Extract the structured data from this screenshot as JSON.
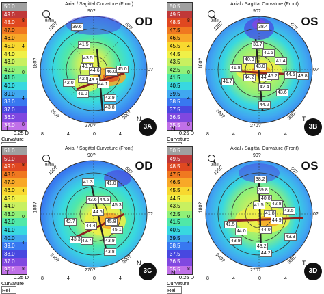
{
  "panels": [
    {
      "id": "a",
      "title": "Axial / Sagittal Curvature (Front)",
      "eye": "OD",
      "tag": "3A",
      "scale_values": [
        "50.0",
        "49.0",
        "48.0",
        "47.0",
        "46.0",
        "45.0",
        "44.0",
        "43.0",
        "42.0",
        "41.0",
        "40.0",
        "39.0",
        "38.0",
        "37.0",
        "36.0",
        "35.0"
      ],
      "step": "0.25 D",
      "map_type": "Curvature",
      "scale_mode": "Rel",
      "zoom": "9mm",
      "axis": {
        "top": "90?",
        "bottom": "270?",
        "left": "180?",
        "right": "0?",
        "x30": "30?",
        "x60": "60?",
        "x120": "120?",
        "x150": "150?",
        "x210": "210?",
        "x240": "240?",
        "x300": "300?",
        "x330": "330?"
      },
      "bottom_ticks": [
        "8",
        "4",
        "0",
        "4",
        "8"
      ],
      "left_ticks": [
        "8",
        "4",
        "0",
        "4",
        "8"
      ],
      "side_left": "T",
      "side_right": "N",
      "values": [
        "39.6",
        "41.5",
        "43.5",
        "43.7",
        "44.6",
        "46.0",
        "45.0",
        "42.5",
        "43.8",
        "44.1",
        "42.9",
        "43.8",
        "42.0",
        "41.0"
      ]
    },
    {
      "id": "b",
      "title": "Axial / Sagittal Curvature (Front)",
      "eye": "OS",
      "tag": "3B",
      "scale_values": [
        "50.5",
        "49.5",
        "48.5",
        "47.5",
        "46.5",
        "45.5",
        "44.5",
        "43.5",
        "42.5",
        "41.5",
        "40.5",
        "39.5",
        "38.5",
        "37.5",
        "36.5",
        "35.5"
      ],
      "step": "0.25 D",
      "map_type": "Curvature",
      "scale_mode": "Rel",
      "zoom": "9mm",
      "axis": {
        "top": "90?",
        "bottom": "270?",
        "left": "180?",
        "right": "0?",
        "x30": "30?",
        "x60": "60?",
        "x120": "120?",
        "x150": "150?",
        "x210": "210?",
        "x240": "240?",
        "x300": "300?",
        "x330": "330?"
      },
      "bottom_ticks": [
        "8",
        "4",
        "0",
        "4",
        "8"
      ],
      "left_ticks": [
        "8",
        "4",
        "0",
        "4",
        "8"
      ],
      "side_left": "N",
      "side_right": "T",
      "values": [
        "38.4",
        "39.7",
        "40.6",
        "41.8",
        "43.0",
        "41.4",
        "44.2",
        "44.6",
        "45.2",
        "44.6",
        "43.8",
        "43.6",
        "42.4",
        "44.2",
        "41.7",
        "40.3"
      ]
    },
    {
      "id": "c",
      "title": "Axial / Sagittal Curvature (Front)",
      "eye": "OD",
      "tag": "3C",
      "scale_values": [
        "51.0",
        "50.0",
        "49.0",
        "48.0",
        "47.0",
        "46.0",
        "45.0",
        "44.0",
        "43.0",
        "42.0",
        "41.0",
        "40.0",
        "39.0",
        "38.0",
        "37.0",
        "36.0"
      ],
      "step": "0.25 D",
      "map_type": "Curvature",
      "scale_mode": "Rel",
      "zoom": "9mm",
      "axis": {
        "top": "90?",
        "bottom": "270?",
        "left": "180?",
        "right": "0?",
        "x30": "30?",
        "x60": "60?",
        "x120": "120?",
        "x150": "150?",
        "x210": "210?",
        "x240": "240?",
        "x300": "300?",
        "x330": "330?"
      },
      "bottom_ticks": [
        "8",
        "4",
        "0",
        "4",
        "8"
      ],
      "left_ticks": [
        "8",
        "4",
        "0",
        "4",
        "8"
      ],
      "side_left": "T",
      "side_right": "N",
      "values": [
        "41.3",
        "41.0",
        "43.6",
        "44.5",
        "45.3",
        "42.7",
        "44.4",
        "45.8",
        "45.1",
        "44.6",
        "43.9",
        "43.8",
        "42.7",
        "43.3"
      ]
    },
    {
      "id": "d",
      "title": "Axial / Sagittal Curvature (Front)",
      "eye": "OS",
      "tag": "3D",
      "scale_values": [
        "50.5",
        "49.5",
        "48.5",
        "47.5",
        "46.5",
        "45.5",
        "44.5",
        "43.5",
        "42.5",
        "41.5",
        "40.5",
        "39.5",
        "38.5",
        "37.5",
        "36.5",
        "35.5"
      ],
      "step": "0.25 D",
      "map_type": "Curvature",
      "scale_mode": "Rel",
      "zoom": "9mm",
      "axis": {
        "top": "90?",
        "bottom": "270?",
        "left": "180?",
        "right": "0?",
        "x30": "30?",
        "x60": "60?",
        "x120": "120?",
        "x150": "150?",
        "x210": "210?",
        "x240": "240?",
        "x300": "300?",
        "x330": "330?"
      },
      "bottom_ticks": [
        "8",
        "4",
        "0",
        "4",
        "8"
      ],
      "left_ticks": [
        "8",
        "4",
        "0",
        "4",
        "8"
      ],
      "side_left": "N",
      "side_right": "T",
      "values": [
        "38.2",
        "39.8",
        "40.8",
        "41.5",
        "42.8",
        "43.5",
        "44.9",
        "44.0",
        "43.2",
        "44.2",
        "43.3",
        "43.9",
        "44.0",
        "41.5",
        "41.8"
      ]
    }
  ],
  "colors": {
    "scale_a": [
      "#a0a0a0",
      "#c04040",
      "#e04020",
      "#f07020",
      "#f8a020",
      "#f8d020",
      "#f8f040",
      "#d8f060",
      "#a8f070",
      "#70e890",
      "#40d8d0",
      "#40b0f0",
      "#4080f0",
      "#4050e0",
      "#8050e0",
      "#c070e0"
    ],
    "scale_b": [
      "#a0a0a0",
      "#c04040",
      "#e04020",
      "#f07020",
      "#f8a020",
      "#f8d020",
      "#f8f040",
      "#d8f060",
      "#a8f070",
      "#70e890",
      "#40d8d0",
      "#40b0f0",
      "#4080f0",
      "#4050e0",
      "#8050e0",
      "#c070e0"
    ]
  }
}
